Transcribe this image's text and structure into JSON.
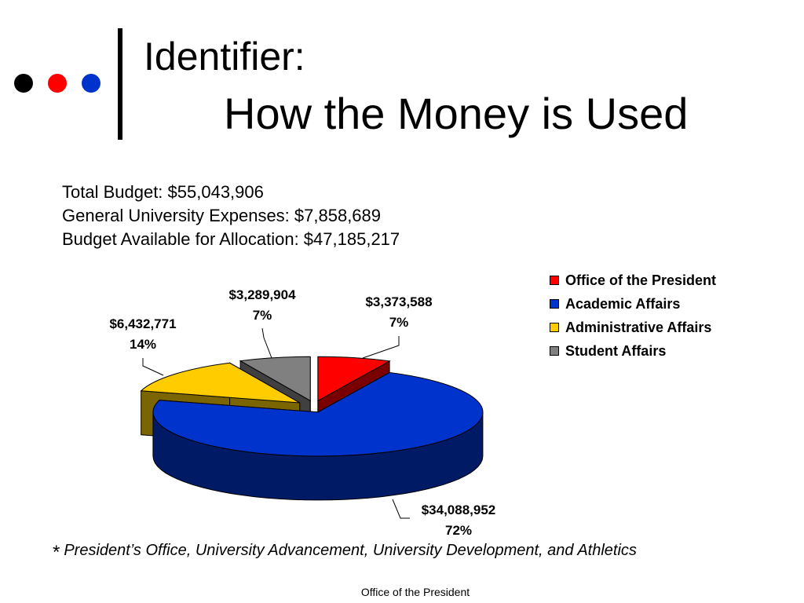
{
  "slide": {
    "title_line1": "Identifier:",
    "title_line2": "How the Money is Used",
    "info_lines": [
      "Total Budget: $55,043,906",
      "General University Expenses: $7,858,689",
      "Budget Available for Allocation: $47,185,217"
    ],
    "footnote_star": "*",
    "footnote_text": "President’s Office, University Advancement, University Development, and Athletics",
    "footer": "Office of the President",
    "bullet_colors": [
      "#000000",
      "#ff0000",
      "#0033cc"
    ]
  },
  "chart_data": {
    "type": "pie",
    "style": "3d-exploded",
    "legend_position": "top-right",
    "slices": [
      {
        "name": "Office of the President",
        "value_label": "$3,373,588",
        "value": 3373588,
        "percent_label": "7%",
        "color": "#ff0000",
        "side_color": "#7a0000"
      },
      {
        "name": "Academic Affairs",
        "value_label": "$34,088,952",
        "value": 34088952,
        "percent_label": "72%",
        "color": "#0033cc",
        "side_color": "#001a66"
      },
      {
        "name": "Administrative Affairs",
        "value_label": "$6,432,771",
        "value": 6432771,
        "percent_label": "14%",
        "color": "#ffcc00",
        "side_color": "#7a6500"
      },
      {
        "name": "Student Affairs",
        "value_label": "$3,289,904",
        "value": 3289904,
        "percent_label": "7%",
        "color": "#808080",
        "side_color": "#404040"
      }
    ]
  }
}
